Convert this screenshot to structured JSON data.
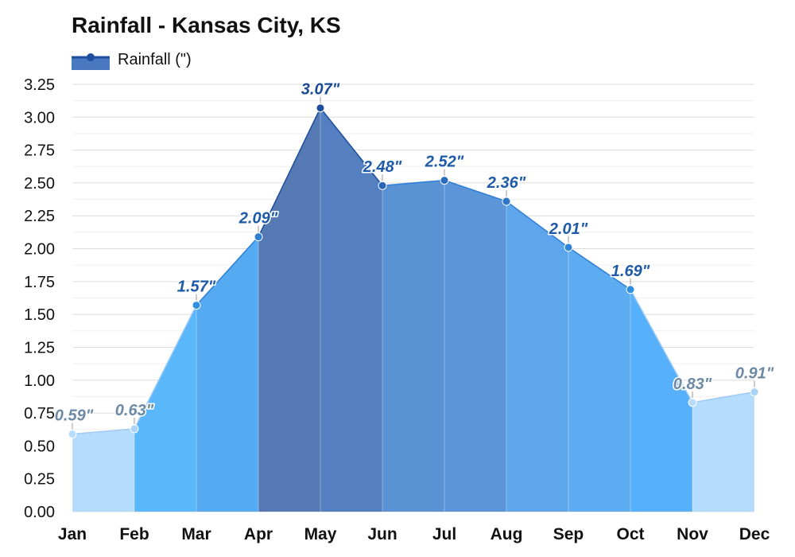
{
  "chart_data": {
    "type": "area",
    "title": "Rainfall - Kansas City, KS",
    "categories": [
      "Jan",
      "Feb",
      "Mar",
      "Apr",
      "May",
      "Jun",
      "Jul",
      "Aug",
      "Sep",
      "Oct",
      "Nov",
      "Dec"
    ],
    "series": [
      {
        "name": "Rainfall (\")",
        "values": [
          0.59,
          0.63,
          1.57,
          2.09,
          3.07,
          2.48,
          2.52,
          2.36,
          2.01,
          1.69,
          0.83,
          0.91
        ],
        "data_labels": [
          "0.59\"",
          "0.63\"",
          "1.57\"",
          "2.09\"",
          "3.07\"",
          "2.48\"",
          "2.52\"",
          "2.36\"",
          "2.01\"",
          "1.69\"",
          "0.83\"",
          "0.91\""
        ]
      }
    ],
    "xlabel": "",
    "ylabel": "",
    "ylim": [
      0,
      3.25
    ],
    "yticks": [
      "0.00",
      "0.25",
      "0.50",
      "0.75",
      "1.00",
      "1.25",
      "1.50",
      "1.75",
      "2.00",
      "2.25",
      "2.50",
      "2.75",
      "3.00",
      "3.25"
    ],
    "grid": true,
    "legend_position": "top-left",
    "segment_fill_colors": [
      "#b6dcfd",
      "#5ab7fa",
      "#55aaf1",
      "#5479b3",
      "#5480c1",
      "#5b92d4",
      "#5c96d9",
      "#5ea6ec",
      "#5dacf2",
      "#56b0fa",
      "#b6dcfd"
    ],
    "point_colors": [
      "#b6dcfd",
      "#a9d3f8",
      "#2f8fe0",
      "#2e7fd3",
      "#1d4ea0",
      "#2766b8",
      "#2a6cc0",
      "#2c77c9",
      "#2e84d6",
      "#2f8fe0",
      "#b6dcfd",
      "#a9d3f8"
    ],
    "label_colors": [
      "#6d8aa6",
      "#6d8aa6",
      "#1e5aa8",
      "#1e5aa8",
      "#1a4a94",
      "#1e5aa8",
      "#1e5aa8",
      "#1e5aa8",
      "#1e5aa8",
      "#1e5aa8",
      "#6d8aa6",
      "#6d8aa6"
    ],
    "line_color": "#2f8fe0"
  }
}
